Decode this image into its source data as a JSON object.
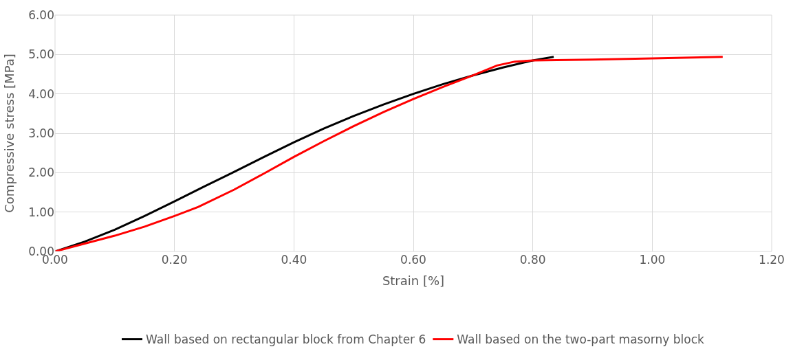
{
  "chart_data": {
    "type": "line",
    "xlabel": "Strain [%]",
    "ylabel": "Compressive stress [MPa]",
    "xlim": [
      0,
      1.2
    ],
    "xticks": [
      {
        "value": 0,
        "label": "0.00"
      },
      {
        "value": 0.2,
        "label": "0.20"
      },
      {
        "value": 0.4,
        "label": "0.40"
      },
      {
        "value": 0.6,
        "label": "0.60"
      },
      {
        "value": 0.8,
        "label": "0.80"
      },
      {
        "value": 1.0,
        "label": "1.00"
      },
      {
        "value": 1.2,
        "label": "1.20"
      }
    ],
    "ylim": [
      0,
      6
    ],
    "yticks": [
      {
        "value": 0,
        "label": "0.00"
      },
      {
        "value": 1,
        "label": "1.00"
      },
      {
        "value": 2,
        "label": "2.00"
      },
      {
        "value": 3,
        "label": "3.00"
      },
      {
        "value": 4,
        "label": "4.00"
      },
      {
        "value": 5,
        "label": "5.00"
      },
      {
        "value": 6,
        "label": "6.00"
      }
    ],
    "grid": true,
    "legend": "bottom",
    "marker": "none",
    "line_style": "solid",
    "series": [
      {
        "name": "Wall based on rectangular block from Chapter 6",
        "color": "#000000",
        "x": [
          0,
          0.05,
          0.1,
          0.15,
          0.2,
          0.25,
          0.3,
          0.35,
          0.4,
          0.45,
          0.5,
          0.55,
          0.6,
          0.65,
          0.7,
          0.75,
          0.8,
          0.835
        ],
        "values": [
          0,
          0.25,
          0.55,
          0.9,
          1.27,
          1.65,
          2.02,
          2.4,
          2.77,
          3.12,
          3.44,
          3.73,
          4.0,
          4.25,
          4.47,
          4.67,
          4.85,
          4.94
        ]
      },
      {
        "name": "Wall based on the two-part masorny block",
        "color": "#ff0000",
        "x": [
          0,
          0.05,
          0.1,
          0.15,
          0.2,
          0.24,
          0.3,
          0.35,
          0.4,
          0.45,
          0.5,
          0.55,
          0.6,
          0.65,
          0.7,
          0.74,
          0.77,
          0.8,
          0.9,
          1.0,
          1.118
        ],
        "values": [
          0,
          0.2,
          0.4,
          0.63,
          0.9,
          1.13,
          1.57,
          1.98,
          2.4,
          2.8,
          3.18,
          3.54,
          3.87,
          4.18,
          4.47,
          4.72,
          4.82,
          4.85,
          4.87,
          4.9,
          4.94
        ]
      }
    ]
  }
}
